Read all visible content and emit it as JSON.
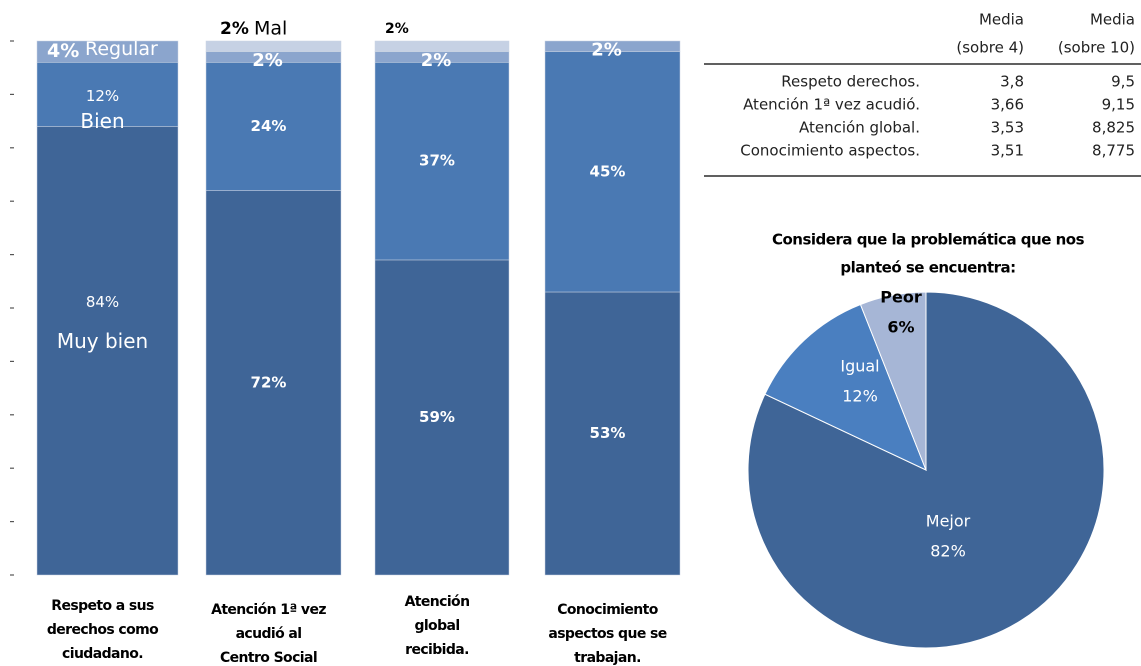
{
  "chart_data": [
    {
      "type": "stacked_bar",
      "categories": [
        "Respeto  a sus\nderechos como\nciudadano.",
        "Atención 1ª vez\nacudió al\nCentro Social",
        "Atención\nglobal\nrecibida.",
        "Conocimiento\naspectos que se\ntrabajan."
      ],
      "series": [
        {
          "name": "Muy bien",
          "color": "#3f6597",
          "values": [
            84,
            72,
            59,
            53
          ],
          "value_labels": [
            "84%",
            "72%",
            "59%",
            "53%"
          ]
        },
        {
          "name": "Bien",
          "color": "#4a79b3",
          "values": [
            12,
            24,
            37,
            45
          ],
          "value_labels": [
            "12%",
            "24%",
            "37%",
            "45%"
          ]
        },
        {
          "name": "Regular",
          "color": "#8ba5cd",
          "values": [
            4,
            2,
            2,
            2
          ],
          "value_labels": [
            "4%",
            "2%",
            "2%",
            "2%"
          ]
        },
        {
          "name": "Mal",
          "color": "#c6d1e4",
          "values": [
            null,
            2,
            2,
            null
          ],
          "value_labels": [
            null,
            "2%",
            "2%",
            null
          ]
        }
      ],
      "ylim": [
        0,
        100
      ],
      "yticks": [
        0,
        10,
        20,
        30,
        40,
        50,
        60,
        70,
        80,
        90,
        100
      ]
    },
    {
      "type": "pie",
      "title": [
        "Considera que la problemática que nos",
        "planteó se encuentra:"
      ],
      "categories": [
        "Mejor",
        "Igual",
        "Peor"
      ],
      "values": [
        82,
        12,
        6
      ],
      "value_labels": [
        "82%",
        "12%",
        "6%"
      ],
      "colors": [
        "#3f6597",
        "#4a7fc0",
        "#a6b6d6"
      ]
    }
  ],
  "table": {
    "columns": [
      [
        "Media",
        "(sobre 4)"
      ],
      [
        "Media",
        "(sobre 10)"
      ]
    ],
    "rows": [
      [
        "Respeto  derechos.",
        "3,8",
        "9,5"
      ],
      [
        "Atención 1ª vez acudió.",
        "3,66",
        "9,15"
      ],
      [
        "Atención global.",
        "3,53",
        "8,825"
      ],
      [
        "Conocimiento aspectos.",
        "3,51",
        "8,775"
      ]
    ]
  }
}
